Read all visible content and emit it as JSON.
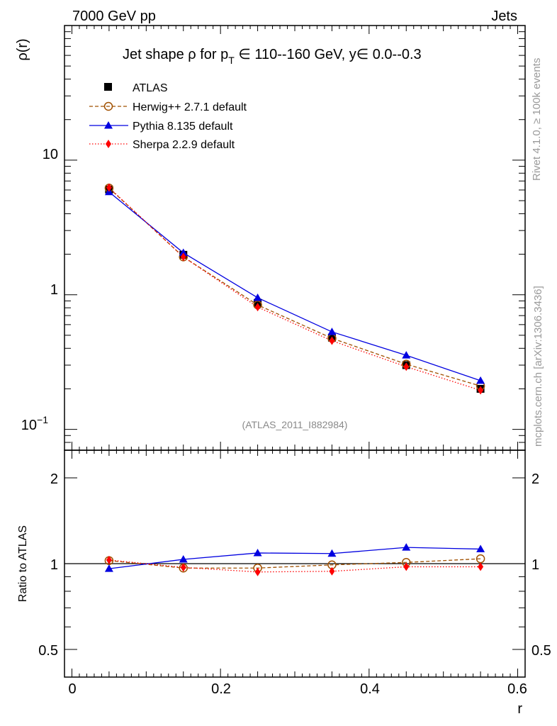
{
  "header": {
    "left": "7000 GeV pp",
    "right": "Jets"
  },
  "side_labels": {
    "rivet": "Rivet 4.1.0, ≥ 100k events",
    "mcplots": "mcplots.cern.ch [arXiv:1306.3436]"
  },
  "chart_data": [
    {
      "type": "line",
      "panel": "main",
      "title": "Jet shape ρ for p_T ∈ 110--160 GeV, y∈ 0.0--0.3",
      "title_parts": {
        "a": "Jet shape ρ for p",
        "sub": "T",
        "b": " ∈ 110--160 GeV, y∈ 0.0--0.3"
      },
      "ylabel": "ρ(r)",
      "yscale": "log",
      "ylim": [
        0.07,
        100
      ],
      "xlim": [
        -0.01,
        0.61
      ],
      "ytick_labels": [
        "10",
        "1",
        "10"
      ],
      "ytick_minus1_exp": "−1",
      "analysis_tag": "(ATLAS_2011_I882984)",
      "x": [
        0.05,
        0.15,
        0.25,
        0.35,
        0.45,
        0.55
      ],
      "series": [
        {
          "name": "ATLAS",
          "values": [
            6.05,
            1.98,
            0.87,
            0.48,
            0.3,
            0.2
          ],
          "color": "#000000"
        },
        {
          "name": "Herwig++ 2.7.1 default",
          "values": [
            6.2,
            1.91,
            0.84,
            0.475,
            0.305,
            0.21
          ],
          "color": "#a05000"
        },
        {
          "name": "Pythia 8.135 default",
          "values": [
            5.8,
            2.05,
            0.95,
            0.53,
            0.355,
            0.23
          ],
          "color": "#0000e0"
        },
        {
          "name": "Sherpa 2.2.9 default",
          "values": [
            6.25,
            1.91,
            0.81,
            0.455,
            0.292,
            0.195
          ],
          "color": "#ff0000"
        }
      ]
    },
    {
      "type": "line",
      "panel": "ratio",
      "ylabel": "Ratio to ATLAS",
      "xlabel": "r",
      "yscale": "log",
      "ylim": [
        0.4,
        2.5
      ],
      "xlim": [
        -0.01,
        0.61
      ],
      "ytick_labels": [
        "2",
        "1",
        "0.5"
      ],
      "xtick_labels": [
        "0",
        "0.2",
        "0.4",
        "0.6"
      ],
      "x": [
        0.05,
        0.15,
        0.25,
        0.35,
        0.45,
        0.55
      ],
      "series": [
        {
          "name": "Herwig++ 2.7.1 default",
          "values": [
            1.025,
            0.965,
            0.965,
            0.99,
            1.01,
            1.04
          ],
          "color": "#a05000"
        },
        {
          "name": "Pythia 8.135 default",
          "values": [
            0.96,
            1.035,
            1.09,
            1.085,
            1.14,
            1.125
          ],
          "color": "#0000e0"
        },
        {
          "name": "Sherpa 2.2.9 default",
          "values": [
            1.03,
            0.97,
            0.935,
            0.94,
            0.975,
            0.975
          ],
          "color": "#ff0000"
        }
      ]
    }
  ]
}
